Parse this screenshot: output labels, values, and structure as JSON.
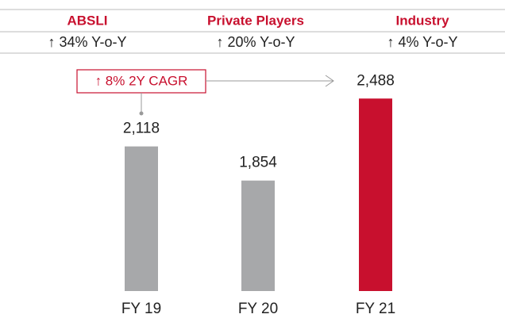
{
  "header": [
    {
      "name": "ABSLI",
      "change": "↑ 34% Y-o-Y"
    },
    {
      "name": "Private Players",
      "change": "↑ 20% Y-o-Y"
    },
    {
      "name": "Industry",
      "change": "↑ 4% Y-o-Y"
    }
  ],
  "chart_data": {
    "type": "bar",
    "categories": [
      "FY 19",
      "FY 20",
      "FY 21"
    ],
    "values": [
      2118,
      1854,
      2488
    ],
    "value_labels": [
      "2,118",
      "1,854",
      "2,488"
    ],
    "colors": [
      "#a7a8aa",
      "#a7a8aa",
      "#c8102e"
    ],
    "ylim": [
      1000,
      2600
    ],
    "annotation": "↑ 8% 2Y CAGR"
  }
}
